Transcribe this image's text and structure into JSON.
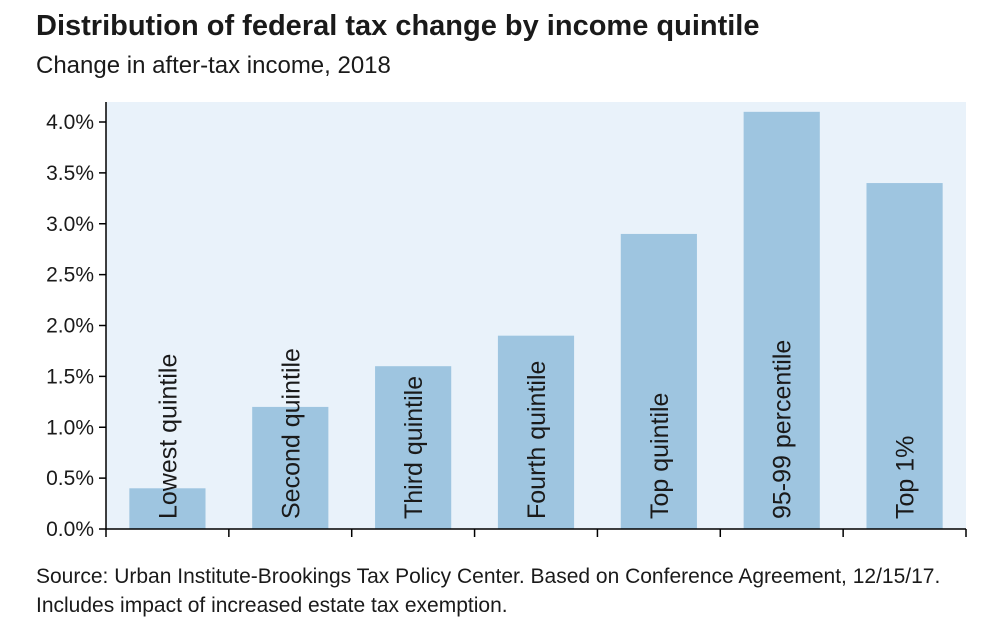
{
  "chart_data": {
    "type": "bar",
    "title": "Distribution of federal tax change by income quintile",
    "subtitle": "Change in after-tax income, 2018",
    "categories": [
      "Lowest quintile",
      "Second quintile",
      "Third quintile",
      "Fourth quintile",
      "Top quintile",
      "95-99 percentile",
      "Top 1%"
    ],
    "values": [
      0.4,
      1.2,
      1.6,
      1.9,
      2.9,
      4.1,
      3.4
    ],
    "value_unit": "%",
    "ylim": [
      0,
      4.0
    ],
    "y_ticks": [
      "0.0%",
      "0.5%",
      "1.0%",
      "1.5%",
      "2.0%",
      "2.5%",
      "3.0%",
      "3.5%",
      "4.0%"
    ],
    "xlabel": "",
    "ylabel": "",
    "grid": false,
    "colors": {
      "bar": "#9ec5e0",
      "plot_background": "#e9f2fa",
      "axis": "#000000"
    },
    "source": "Source: Urban Institute-Brookings Tax Policy Center. Based on Conference Agreement, 12/15/17. Includes impact of increased estate tax exemption."
  }
}
